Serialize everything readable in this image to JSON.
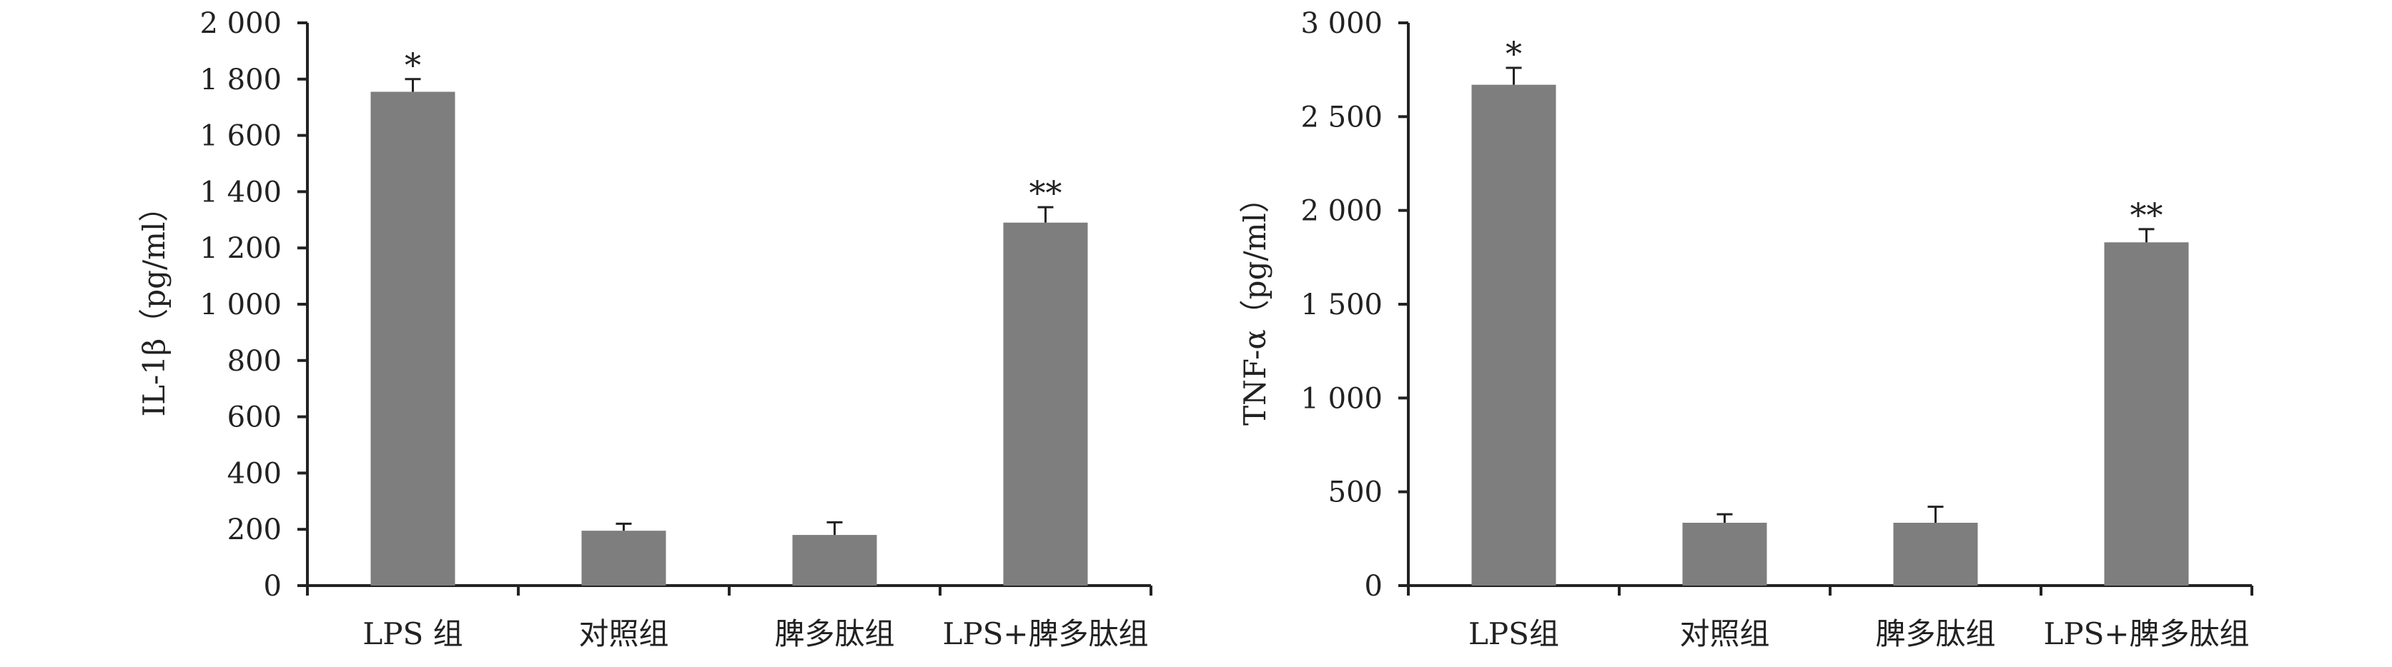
{
  "colors": {
    "bar": "#7f7e7f",
    "axis": "#222222"
  },
  "chart_data": [
    {
      "type": "bar",
      "ylabel": "IL-1β（pg/ml）",
      "ylim": [
        0,
        2000
      ],
      "yticks": [
        "0",
        "200",
        "400",
        "600",
        "800",
        "1 000",
        "1 200",
        "1 400",
        "1 600",
        "1 800",
        "2 000"
      ],
      "categories": [
        "LPS 组",
        "对照组",
        "脾多肽组",
        "LPS+脾多肽组"
      ],
      "values": [
        1755,
        195,
        180,
        1290
      ],
      "errors": [
        45,
        25,
        45,
        55
      ],
      "annotations": [
        "*",
        "",
        "",
        "**"
      ]
    },
    {
      "type": "bar",
      "ylabel": "TNF-α（pg/ml）",
      "ylim": [
        0,
        3000
      ],
      "yticks": [
        "0",
        "500",
        "1 000",
        "1 500",
        "2 000",
        "2 500",
        "3 000"
      ],
      "categories": [
        "LPS组",
        "对照组",
        "脾多肽组",
        "LPS+脾多肽组"
      ],
      "values": [
        2670,
        335,
        335,
        1830
      ],
      "errors": [
        90,
        45,
        85,
        70
      ],
      "annotations": [
        "*",
        "",
        "",
        "**"
      ]
    }
  ]
}
